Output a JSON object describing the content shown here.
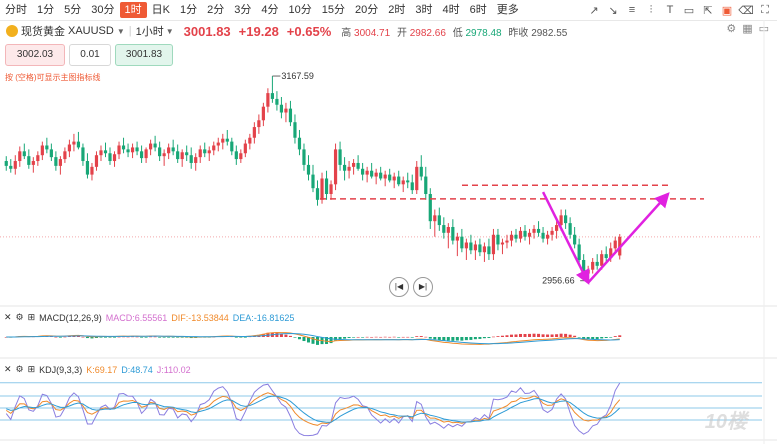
{
  "timeframes": [
    "分时",
    "1分",
    "5分",
    "30分",
    "1时",
    "日K",
    "1分",
    "2分",
    "3分",
    "4分",
    "10分",
    "15分",
    "20分",
    "2时",
    "3时",
    "4时",
    "6时",
    "更多"
  ],
  "active_timeframe_index": 4,
  "toolbar_icons": [
    "trend-line-icon",
    "ray-icon",
    "parallel-icon",
    "fibonacci-icon",
    "text-icon",
    "rectangle-icon",
    "expand-icon",
    "snapshot-icon",
    "eraser-icon",
    "fullscreen-icon"
  ],
  "symbol": {
    "name": "现货黄金",
    "code": "XAUUSD",
    "interval": "1小时",
    "icon_color": "#f2b01e"
  },
  "quote": {
    "price": "3001.83",
    "change": "+19.28",
    "change_pct": "+0.65%",
    "high_label": "高",
    "high": "3004.71",
    "open_label": "开",
    "open": "2982.66",
    "low_label": "低",
    "low": "2978.48",
    "prev_label": "昨收",
    "prev": "2982.55"
  },
  "trade": {
    "sell_price": "3002.03",
    "qty": "0.01",
    "buy_price": "3001.83"
  },
  "hint": "按 (空格)可显示主图指标线",
  "colors": {
    "up": "#e3424a",
    "down": "#18a777",
    "accent": "#ef5a35",
    "arrow": "#e022e0",
    "dashed": "#e3424a"
  },
  "chart_data": {
    "type": "candlestick",
    "annotations": {
      "high_label": "3167.59",
      "low_label": "2956.66"
    },
    "dashed_levels": [
      3055,
      3041
    ],
    "ohlc": [
      [
        3080,
        3085,
        3070,
        3075
      ],
      [
        3075,
        3082,
        3068,
        3072
      ],
      [
        3072,
        3086,
        3066,
        3080
      ],
      [
        3080,
        3095,
        3074,
        3090
      ],
      [
        3090,
        3098,
        3082,
        3085
      ],
      [
        3085,
        3092,
        3072,
        3076
      ],
      [
        3076,
        3084,
        3068,
        3080
      ],
      [
        3080,
        3090,
        3075,
        3086
      ],
      [
        3086,
        3100,
        3081,
        3096
      ],
      [
        3096,
        3104,
        3088,
        3092
      ],
      [
        3092,
        3098,
        3080,
        3084
      ],
      [
        3084,
        3090,
        3070,
        3075
      ],
      [
        3075,
        3085,
        3066,
        3082
      ],
      [
        3082,
        3094,
        3078,
        3090
      ],
      [
        3090,
        3102,
        3084,
        3097
      ],
      [
        3097,
        3108,
        3090,
        3100
      ],
      [
        3100,
        3110,
        3092,
        3094
      ],
      [
        3094,
        3098,
        3075,
        3080
      ],
      [
        3080,
        3088,
        3062,
        3066
      ],
      [
        3066,
        3078,
        3060,
        3074
      ],
      [
        3074,
        3090,
        3070,
        3086
      ],
      [
        3086,
        3096,
        3080,
        3091
      ],
      [
        3091,
        3099,
        3084,
        3088
      ],
      [
        3088,
        3094,
        3076,
        3080
      ],
      [
        3080,
        3090,
        3074,
        3087
      ],
      [
        3087,
        3100,
        3082,
        3096
      ],
      [
        3096,
        3104,
        3088,
        3092
      ],
      [
        3092,
        3098,
        3084,
        3089
      ],
      [
        3089,
        3098,
        3083,
        3094
      ],
      [
        3094,
        3100,
        3086,
        3090
      ],
      [
        3090,
        3096,
        3078,
        3083
      ],
      [
        3083,
        3094,
        3078,
        3092
      ],
      [
        3092,
        3102,
        3086,
        3098
      ],
      [
        3098,
        3106,
        3090,
        3094
      ],
      [
        3094,
        3100,
        3080,
        3085
      ],
      [
        3085,
        3092,
        3075,
        3088
      ],
      [
        3088,
        3098,
        3082,
        3094
      ],
      [
        3094,
        3102,
        3086,
        3090
      ],
      [
        3090,
        3097,
        3078,
        3082
      ],
      [
        3082,
        3092,
        3074,
        3089
      ],
      [
        3089,
        3096,
        3080,
        3086
      ],
      [
        3086,
        3094,
        3072,
        3078
      ],
      [
        3078,
        3088,
        3070,
        3084
      ],
      [
        3084,
        3096,
        3078,
        3092
      ],
      [
        3092,
        3099,
        3084,
        3088
      ],
      [
        3088,
        3095,
        3080,
        3091
      ],
      [
        3091,
        3100,
        3086,
        3096
      ],
      [
        3096,
        3104,
        3090,
        3099
      ],
      [
        3099,
        3108,
        3092,
        3103
      ],
      [
        3103,
        3112,
        3096,
        3100
      ],
      [
        3100,
        3104,
        3086,
        3090
      ],
      [
        3090,
        3096,
        3076,
        3082
      ],
      [
        3082,
        3092,
        3078,
        3088
      ],
      [
        3088,
        3102,
        3084,
        3098
      ],
      [
        3098,
        3108,
        3092,
        3104
      ],
      [
        3104,
        3120,
        3098,
        3115
      ],
      [
        3115,
        3128,
        3108,
        3122
      ],
      [
        3122,
        3140,
        3116,
        3136
      ],
      [
        3136,
        3155,
        3130,
        3150
      ],
      [
        3150,
        3167.59,
        3140,
        3144
      ],
      [
        3144,
        3152,
        3132,
        3138
      ],
      [
        3138,
        3146,
        3124,
        3130
      ],
      [
        3130,
        3140,
        3120,
        3134
      ],
      [
        3134,
        3142,
        3116,
        3120
      ],
      [
        3120,
        3128,
        3098,
        3104
      ],
      [
        3104,
        3112,
        3086,
        3092
      ],
      [
        3092,
        3098,
        3070,
        3076
      ],
      [
        3076,
        3086,
        3060,
        3066
      ],
      [
        3066,
        3076,
        3048,
        3052
      ],
      [
        3052,
        3060,
        3034,
        3040
      ],
      [
        3040,
        3068,
        3036,
        3062
      ],
      [
        3062,
        3070,
        3040,
        3046
      ],
      [
        3046,
        3060,
        3040,
        3056
      ],
      [
        3056,
        3098,
        3050,
        3092
      ],
      [
        3092,
        3100,
        3070,
        3076
      ],
      [
        3076,
        3084,
        3060,
        3070
      ],
      [
        3070,
        3080,
        3062,
        3074
      ],
      [
        3074,
        3082,
        3066,
        3078
      ],
      [
        3078,
        3086,
        3070,
        3072
      ],
      [
        3072,
        3078,
        3060,
        3066
      ],
      [
        3066,
        3074,
        3058,
        3070
      ],
      [
        3070,
        3078,
        3062,
        3064
      ],
      [
        3064,
        3072,
        3056,
        3068
      ],
      [
        3068,
        3074,
        3060,
        3062
      ],
      [
        3062,
        3070,
        3054,
        3066
      ],
      [
        3066,
        3072,
        3058,
        3060
      ],
      [
        3060,
        3068,
        3052,
        3064
      ],
      [
        3064,
        3070,
        3054,
        3056
      ],
      [
        3056,
        3064,
        3048,
        3060
      ],
      [
        3060,
        3068,
        3052,
        3058
      ],
      [
        3058,
        3066,
        3046,
        3050
      ],
      [
        3050,
        3080,
        3046,
        3074
      ],
      [
        3074,
        3086,
        3060,
        3064
      ],
      [
        3064,
        3074,
        3040,
        3046
      ],
      [
        3046,
        3052,
        3010,
        3018
      ],
      [
        3018,
        3030,
        3002,
        3024
      ],
      [
        3024,
        3032,
        3008,
        3014
      ],
      [
        3014,
        3022,
        3000,
        3006
      ],
      [
        3006,
        3016,
        2990,
        3012
      ],
      [
        3012,
        3020,
        2994,
        2998
      ],
      [
        2998,
        3006,
        2982,
        3002
      ],
      [
        3002,
        3010,
        2986,
        2990
      ],
      [
        2990,
        3000,
        2978,
        2996
      ],
      [
        2996,
        3004,
        2984,
        2988
      ],
      [
        2988,
        2998,
        2978,
        2994
      ],
      [
        2994,
        3000,
        2982,
        2986
      ],
      [
        2986,
        2996,
        2976,
        2992
      ],
      [
        2992,
        3000,
        2978,
        2984
      ],
      [
        2984,
        3010,
        2978,
        3004
      ],
      [
        3004,
        3010,
        2988,
        2994
      ],
      [
        2994,
        3000,
        2984,
        2996
      ],
      [
        2996,
        3004,
        2990,
        2998
      ],
      [
        2998,
        3008,
        2992,
        3004
      ],
      [
        3004,
        3010,
        2996,
        3000
      ],
      [
        3000,
        3012,
        2996,
        3008
      ],
      [
        3008,
        3014,
        2998,
        3002
      ],
      [
        3002,
        3010,
        2994,
        3006
      ],
      [
        3006,
        3014,
        3000,
        3010
      ],
      [
        3010,
        3018,
        3002,
        3006
      ],
      [
        3006,
        3012,
        2996,
        3000
      ],
      [
        3000,
        3008,
        2994,
        3004
      ],
      [
        3004,
        3012,
        2998,
        3008
      ],
      [
        3008,
        3018,
        3000,
        3014
      ],
      [
        3014,
        3030,
        3008,
        3024
      ],
      [
        3024,
        3030,
        3010,
        3016
      ],
      [
        3016,
        3022,
        3000,
        3004
      ],
      [
        3004,
        3012,
        2990,
        2994
      ],
      [
        2994,
        3000,
        2972,
        2978
      ],
      [
        2978,
        2984,
        2960,
        2964
      ],
      [
        2964,
        2972,
        2956.66,
        2968
      ],
      [
        2968,
        2980,
        2964,
        2976
      ],
      [
        2976,
        2984,
        2968,
        2972
      ],
      [
        2972,
        2988,
        2968,
        2984
      ],
      [
        2984,
        2992,
        2976,
        2980
      ],
      [
        2980,
        2996,
        2976,
        2990
      ],
      [
        2990,
        3002,
        2986,
        2998
      ],
      [
        2982.66,
        3004.71,
        2978.48,
        3001.83
      ]
    ],
    "macd": {
      "label": "MACD(12,26,9)",
      "macd_label": "MACD:",
      "macd": "6.55561",
      "dif_label": "DIF:",
      "dif": "-13.53844",
      "dea_label": "DEA:",
      "dea": "-16.81625"
    },
    "kdj": {
      "label": "KDJ(9,3,3)",
      "k_label": "K:",
      "k": "69.17",
      "d_label": "D:",
      "d": "48.74",
      "j_label": "J:",
      "j": "110.02"
    }
  }
}
